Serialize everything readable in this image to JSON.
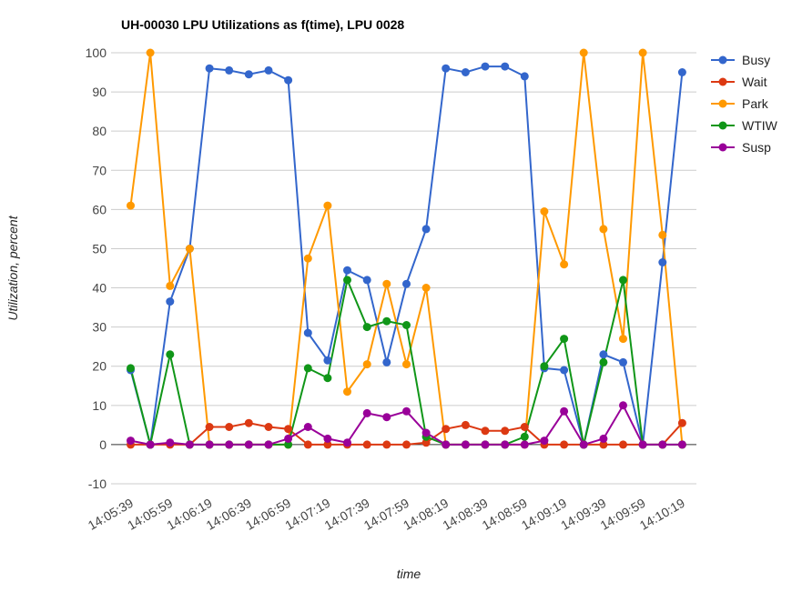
{
  "chart_data": {
    "type": "line",
    "title": "UH-00030 LPU Utilizations as f(time), LPU 0028",
    "xlabel": "time",
    "ylabel": "Utilization, percent",
    "ylim": [
      -10,
      100
    ],
    "y_ticks": [
      "-10",
      "0",
      "10",
      "20",
      "30",
      "40",
      "50",
      "60",
      "70",
      "80",
      "90",
      "100"
    ],
    "x_tick_labels": [
      "14:05:39",
      "14:05:59",
      "14:06:19",
      "14:06:39",
      "14:06:59",
      "14:07:19",
      "14:07:39",
      "14:07:59",
      "14:08:19",
      "14:08:39",
      "14:08:59",
      "14:09:19",
      "14:09:39",
      "14:09:59",
      "14:10:19"
    ],
    "grid": true,
    "legend_position": "right",
    "categories": [
      "14:05:39",
      "14:05:49",
      "14:05:59",
      "14:06:09",
      "14:06:19",
      "14:06:29",
      "14:06:39",
      "14:06:49",
      "14:06:59",
      "14:07:09",
      "14:07:19",
      "14:07:29",
      "14:07:39",
      "14:07:49",
      "14:07:59",
      "14:08:09",
      "14:08:19",
      "14:08:29",
      "14:08:39",
      "14:08:49",
      "14:08:59",
      "14:09:09",
      "14:09:19",
      "14:09:29",
      "14:09:39",
      "14:09:49",
      "14:09:59",
      "14:10:09",
      "14:10:19"
    ],
    "series": [
      {
        "name": "Busy",
        "color": "#3366cc",
        "values": [
          19,
          0,
          36.5,
          50,
          96,
          95.5,
          94.5,
          95.5,
          93,
          28.5,
          21.5,
          44.5,
          42,
          21,
          41,
          55,
          96,
          95,
          96.5,
          96.5,
          94,
          19.5,
          19,
          0,
          23,
          21,
          0,
          46.5,
          95
        ]
      },
      {
        "name": "Wait",
        "color": "#dc3912",
        "values": [
          0,
          0,
          0,
          0,
          4.5,
          4.5,
          5.5,
          4.5,
          4,
          0,
          0,
          0,
          0,
          0,
          0,
          0.5,
          4,
          5,
          3.5,
          3.5,
          4.5,
          0,
          0,
          0,
          0,
          0,
          0,
          0,
          5.5
        ]
      },
      {
        "name": "Park",
        "color": "#ff9900",
        "values": [
          61,
          100,
          40.5,
          50,
          0,
          0,
          0,
          0,
          0,
          47.5,
          61,
          13.5,
          20.5,
          41,
          20.5,
          40,
          0,
          0,
          0,
          0,
          0,
          59.5,
          46,
          100,
          55,
          27,
          100,
          53.5,
          0
        ]
      },
      {
        "name": "WTIW",
        "color": "#109618",
        "values": [
          19.5,
          0,
          23,
          0,
          0,
          0,
          0,
          0,
          0,
          19.5,
          17,
          42,
          30,
          31.5,
          30.5,
          2,
          0,
          0,
          0,
          0,
          2,
          20,
          27,
          0,
          21,
          42,
          0,
          0,
          0
        ]
      },
      {
        "name": "Susp",
        "color": "#990099",
        "values": [
          1,
          0,
          0.5,
          0,
          0,
          0,
          0,
          0,
          1.5,
          4.5,
          1.5,
          0.5,
          8,
          7,
          8.5,
          3,
          0,
          0,
          0,
          0,
          0,
          1,
          8.5,
          0,
          1.5,
          10,
          0,
          0,
          0
        ]
      }
    ]
  }
}
